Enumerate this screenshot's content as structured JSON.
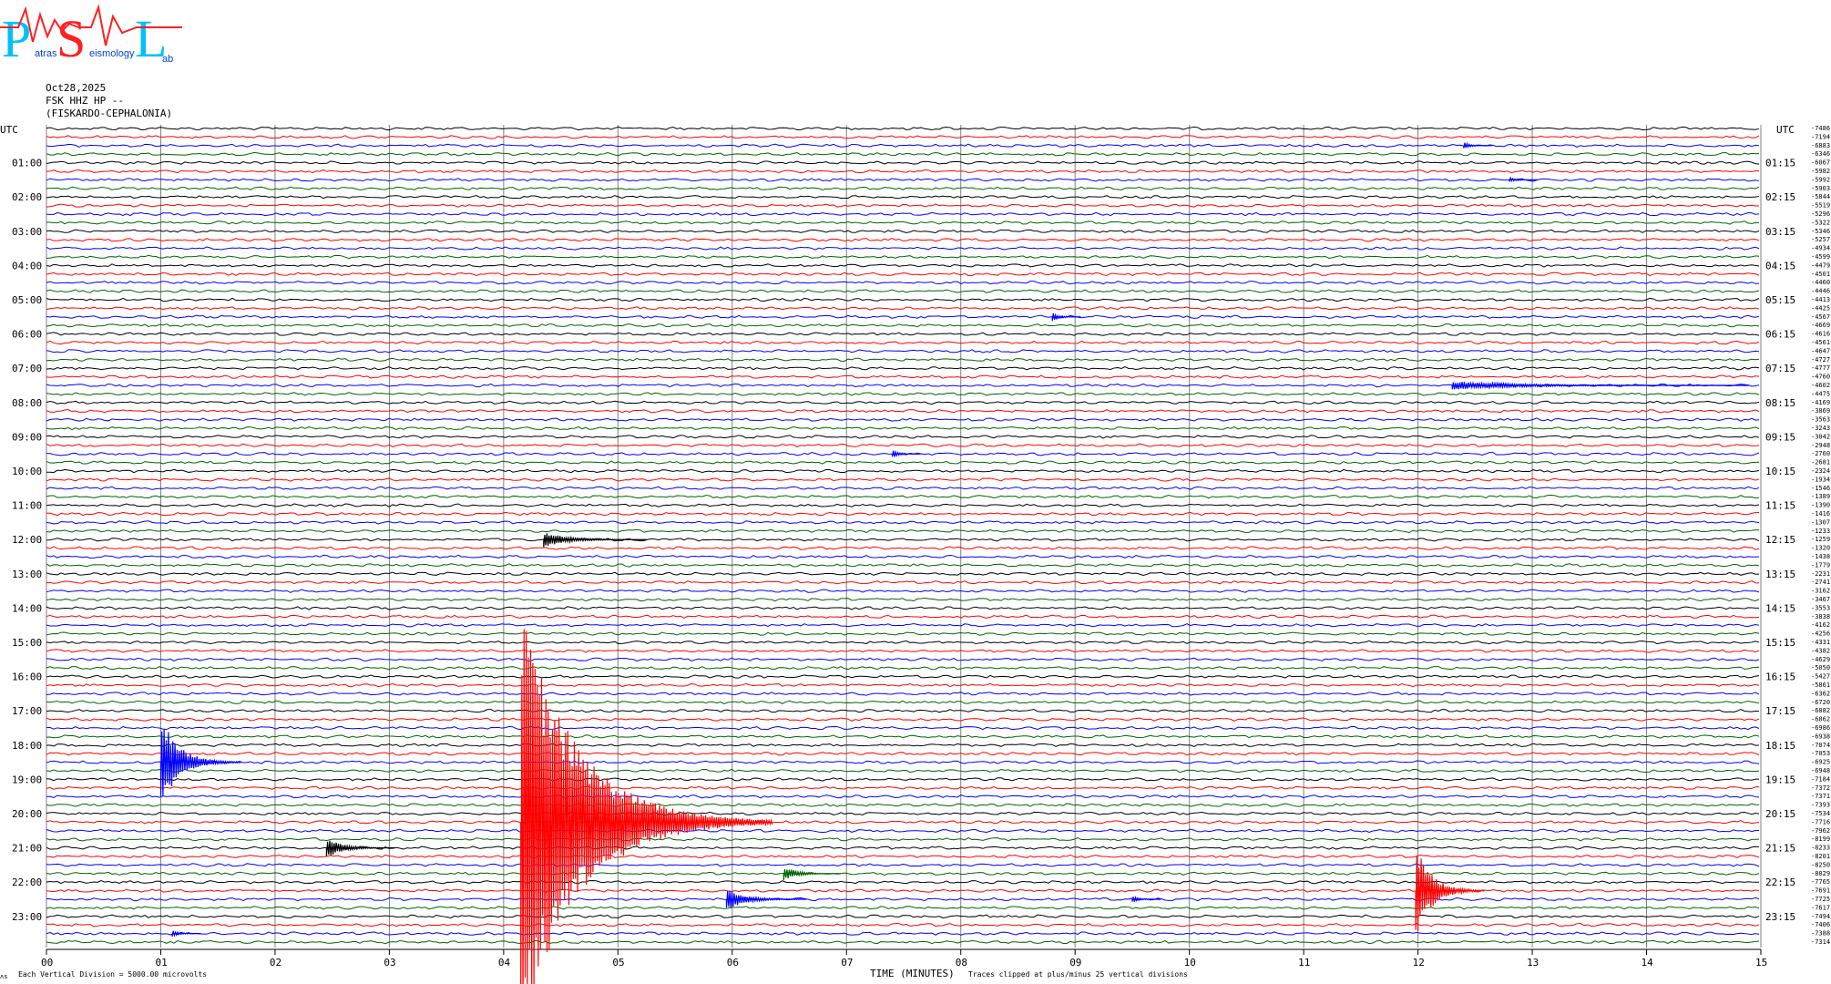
{
  "logo": {
    "letters": [
      "P",
      "S",
      "L"
    ],
    "subtitle": [
      "atras",
      "eismology",
      "ab"
    ]
  },
  "header": {
    "date": "Oct28,2025",
    "station": "FSK HHZ HP --",
    "location": "(FISKARDO-CEPHALONIA)"
  },
  "footer": {
    "vertical_division": "Each Vertical Division = 5000.00 microvolts",
    "clip_note": "Traces clipped at plus/minus 25 vertical divisions",
    "corner_mark": "ʌs"
  },
  "colors": {
    "traces": [
      "#000000",
      "#ff0000",
      "#0000ff",
      "#006400"
    ],
    "grid": "#808080"
  },
  "chart_data": {
    "type": "line",
    "title": "",
    "xlabel": "TIME (MINUTES)",
    "ylabel_left": "UTC",
    "ylabel_right": "UTC",
    "x_ticks": [
      "00",
      "01",
      "02",
      "03",
      "04",
      "05",
      "06",
      "07",
      "08",
      "09",
      "10",
      "11",
      "12",
      "13",
      "14",
      "15"
    ],
    "xlim": [
      0,
      15
    ],
    "left_hour_labels": [
      "01:00",
      "02:00",
      "03:00",
      "04:00",
      "05:00",
      "06:00",
      "07:00",
      "08:00",
      "09:00",
      "10:00",
      "11:00",
      "12:00",
      "13:00",
      "14:00",
      "15:00",
      "16:00",
      "17:00",
      "18:00",
      "19:00",
      "20:00",
      "21:00",
      "22:00",
      "23:00"
    ],
    "right_hour_labels": [
      "01:15",
      "02:15",
      "03:15",
      "04:15",
      "05:15",
      "06:15",
      "07:15",
      "08:15",
      "09:15",
      "10:15",
      "11:15",
      "12:15",
      "13:15",
      "14:15",
      "15:15",
      "16:15",
      "17:15",
      "18:15",
      "19:15",
      "20:15",
      "21:15",
      "22:15",
      "23:15"
    ],
    "trace_count": 96,
    "minutes_per_trace": 15,
    "trace_offsets": [
      -7486,
      -7194,
      -6883,
      -6346,
      -6067,
      -5982,
      -5992,
      -5903,
      -5844,
      -5519,
      -5296,
      -5322,
      -5346,
      -5257,
      -4934,
      -4599,
      -4479,
      -4501,
      -4460,
      -4446,
      -4413,
      -4425,
      -4567,
      -4669,
      -4616,
      -4561,
      -4647,
      -4727,
      -4777,
      -4760,
      -4602,
      -4475,
      -4169,
      -3869,
      -3563,
      -3243,
      -3042,
      -2948,
      -2760,
      -2681,
      -2324,
      -1934,
      -1546,
      -1389,
      -1390,
      -1416,
      -1307,
      -1233,
      -1259,
      -1320,
      -1438,
      -1779,
      -2231,
      -2741,
      -3162,
      -3467,
      -3553,
      -3838,
      -4162,
      -4256,
      -4331,
      -4382,
      -4629,
      -5050,
      -5427,
      -5861,
      -6362,
      -6720,
      -6882,
      -6862,
      -6986,
      -6938,
      -7074,
      -7053,
      -6925,
      -6948,
      -7184,
      -7372,
      -7371,
      -7393,
      -7534,
      -7716,
      -7962,
      -8199,
      -8233,
      -8201,
      -8250,
      -8029,
      -7765,
      -7691,
      -7725,
      -7617,
      -7494,
      -7406,
      -7388,
      -7314
    ],
    "series": [],
    "events": [
      {
        "trace": 2,
        "minute": 12.4,
        "amplitude_divisions": 0.4
      },
      {
        "trace": 6,
        "minute": 12.8,
        "amplitude_divisions": 0.3
      },
      {
        "trace": 22,
        "minute": 8.8,
        "amplitude_divisions": 0.5
      },
      {
        "trace": 30,
        "minute": 12.3,
        "amplitude_divisions": 0.5,
        "duration_minutes": 2.6
      },
      {
        "trace": 38,
        "minute": 7.4,
        "amplitude_divisions": 0.5
      },
      {
        "trace": 48,
        "minute": 4.35,
        "amplitude_divisions": 0.9,
        "duration_minutes": 0.9
      },
      {
        "trace": 74,
        "minute": 1.0,
        "amplitude_divisions": 5.5,
        "duration_minutes": 0.7
      },
      {
        "trace": 81,
        "minute": 4.15,
        "amplitude_divisions": 25,
        "duration_minutes": 2.2
      },
      {
        "trace": 84,
        "minute": 2.45,
        "amplitude_divisions": 1.2,
        "duration_minutes": 0.6
      },
      {
        "trace": 87,
        "minute": 6.45,
        "amplitude_divisions": 0.9,
        "duration_minutes": 0.5
      },
      {
        "trace": 90,
        "minute": 5.95,
        "amplitude_divisions": 1.3,
        "duration_minutes": 0.7
      },
      {
        "trace": 90,
        "minute": 9.5,
        "amplitude_divisions": 0.4
      },
      {
        "trace": 89,
        "minute": 11.98,
        "amplitude_divisions": 5.5,
        "duration_minutes": 0.6
      },
      {
        "trace": 94,
        "minute": 1.1,
        "amplitude_divisions": 0.4
      }
    ]
  }
}
